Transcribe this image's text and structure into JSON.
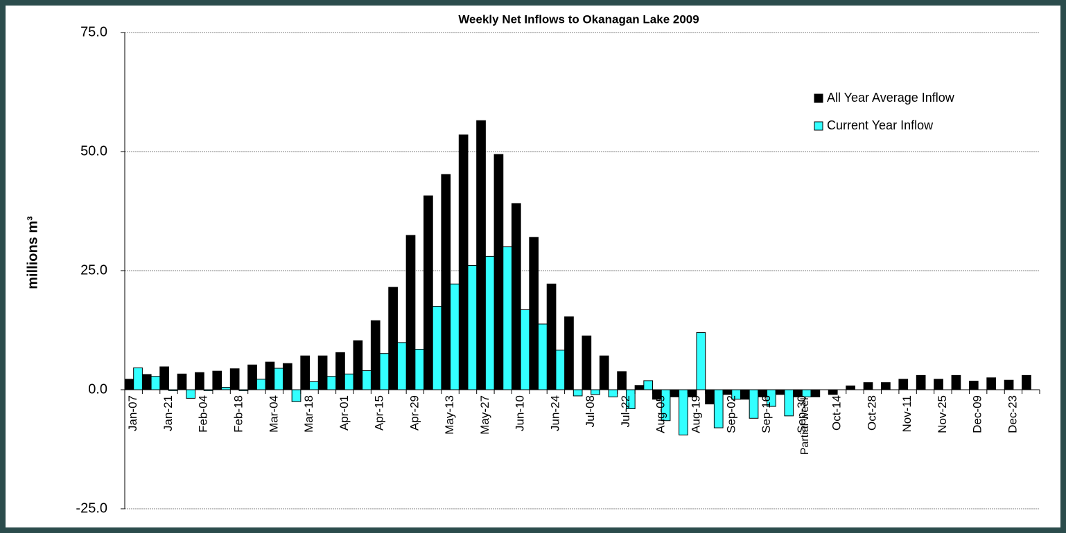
{
  "chart_data": {
    "type": "bar",
    "title": "Weekly Net Inflows to Okanagan Lake 2009",
    "ylabel": "millions m³",
    "categories": [
      "Jan-07",
      null,
      "Jan-21",
      null,
      "Feb-04",
      null,
      "Feb-18",
      null,
      "Mar-04",
      null,
      "Mar-18",
      null,
      "Apr-01",
      null,
      "Apr-15",
      null,
      "Apr-29",
      null,
      "May-13",
      null,
      "May-27",
      null,
      "Jun-10",
      null,
      "Jun-24",
      null,
      "Jul-08",
      null,
      "Jul-22",
      null,
      "Aug-05",
      null,
      "Aug-19",
      null,
      "Sep-02",
      null,
      "Sep-16",
      null,
      "Sep-30",
      null,
      "Oct-14",
      null,
      "Oct-28",
      null,
      "Nov-11",
      null,
      "Nov-25",
      null,
      "Dec-09",
      null,
      "Dec-23",
      null
    ],
    "series": [
      {
        "name": "All Year Average Inflow",
        "color": "#000000",
        "values": [
          2.2,
          3.2,
          4.8,
          3.3,
          3.6,
          3.9,
          4.4,
          5.2,
          5.8,
          5.5,
          7.1,
          7.1,
          7.8,
          10.3,
          14.5,
          21.5,
          32.4,
          40.7,
          45.2,
          53.5,
          56.5,
          49.4,
          39.1,
          32.0,
          22.2,
          15.3,
          11.3,
          7.1,
          3.8,
          0.9,
          -2.0,
          -1.5,
          -1.5,
          -3.0,
          -1.0,
          -2.0,
          -1.5,
          -1.0,
          -1.5,
          -1.5,
          -1.0,
          0.8,
          1.5,
          1.5,
          2.2,
          3.0,
          2.2,
          3.0,
          1.8,
          2.5,
          2.0,
          3.0
        ]
      },
      {
        "name": "Current Year Inflow",
        "color": "#33ffff",
        "values": [
          4.6,
          2.8,
          -0.2,
          -1.8,
          -0.2,
          0.5,
          -0.2,
          2.2,
          4.5,
          -2.5,
          1.7,
          2.8,
          3.3,
          4.0,
          7.6,
          9.9,
          8.5,
          17.5,
          22.2,
          26.1,
          28.0,
          30.0,
          16.8,
          13.8,
          8.3,
          -1.3,
          -1.0,
          -1.5,
          -4.0,
          1.9,
          -6.5,
          -9.5,
          12.0,
          -8.0,
          -2.0,
          -6.0,
          -3.5,
          -5.5,
          -1.5,
          null,
          null,
          null,
          null,
          null,
          null,
          null,
          null,
          null,
          null,
          null,
          null,
          null
        ]
      }
    ],
    "ylim": [
      -25,
      75
    ],
    "yticks": [
      {
        "value": -25,
        "label": "-25.0"
      },
      {
        "value": 0,
        "label": "0.0"
      },
      {
        "value": 25,
        "label": "25.0"
      },
      {
        "value": 50,
        "label": "50.0"
      },
      {
        "value": 75,
        "label": "75.0"
      }
    ],
    "grid": true,
    "legend": "upper right",
    "annotations": [
      {
        "text": "Partial week",
        "color": "#ff0000"
      }
    ]
  }
}
